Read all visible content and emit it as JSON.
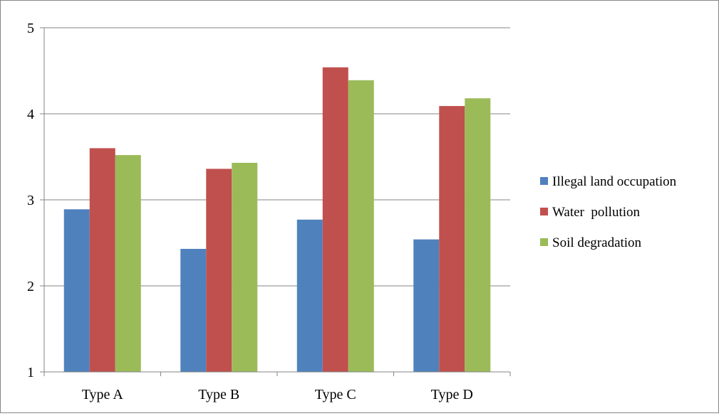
{
  "chart_data": {
    "type": "bar",
    "title": "",
    "xlabel": "",
    "ylabel": "",
    "categories": [
      "Type A",
      "Type B",
      "Type C",
      "Type D"
    ],
    "ylim": [
      1,
      5
    ],
    "yticks": [
      1,
      2,
      3,
      4,
      5
    ],
    "grid": true,
    "legend_position": "right",
    "series": [
      {
        "name": "Illegal land occupation",
        "color": "#4F81BD",
        "values": [
          2.89,
          2.43,
          2.77,
          2.54
        ]
      },
      {
        "name": "Water  pollution",
        "color": "#C0504D",
        "values": [
          3.6,
          3.36,
          4.54,
          4.09
        ]
      },
      {
        "name": "Soil degradation",
        "color": "#9BBB59",
        "values": [
          3.52,
          3.43,
          4.39,
          4.18
        ]
      }
    ]
  }
}
